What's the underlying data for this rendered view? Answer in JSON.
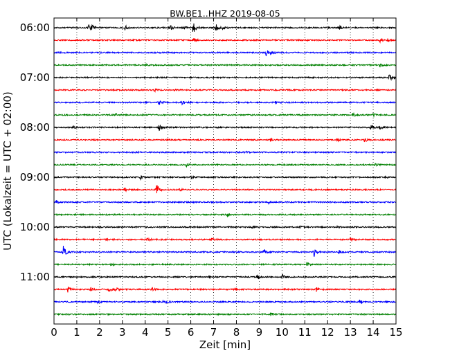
{
  "chart_data": {
    "type": "line",
    "title": "BW.BE1..HHZ 2019-08-05",
    "xlabel": "Zeit  [min]",
    "ylabel": "UTC (Lokalzeit = UTC + 02:00)",
    "xlim": [
      0,
      15
    ],
    "x_ticks": [
      "0",
      "1",
      "2",
      "3",
      "4",
      "5",
      "6",
      "7",
      "8",
      "9",
      "10",
      "11",
      "12",
      "13",
      "14",
      "15"
    ],
    "y_tick_labels": [
      "06:00",
      "07:00",
      "08:00",
      "09:00",
      "10:00",
      "11:00"
    ],
    "trace_interval_min": 15,
    "grid": "vertical dotted at each minute",
    "colors": [
      "#000000",
      "#ff0000",
      "#0000ff",
      "#008000"
    ],
    "traces": [
      {
        "start": "06:00",
        "color": "#000000",
        "events": [
          [
            1.5,
            5
          ],
          [
            1.65,
            4
          ],
          [
            3.1,
            4
          ],
          [
            5.1,
            4
          ],
          [
            5.7,
            3
          ],
          [
            6.1,
            10
          ],
          [
            7.1,
            6
          ],
          [
            7.4,
            3
          ],
          [
            12.5,
            3
          ]
        ]
      },
      {
        "start": "06:15",
        "color": "#ff0000",
        "events": [
          [
            6.1,
            4
          ],
          [
            14.3,
            3
          ],
          [
            14.6,
            3
          ]
        ]
      },
      {
        "start": "06:30",
        "color": "#0000ff",
        "events": [
          [
            0.2,
            2
          ],
          [
            9.3,
            5
          ],
          [
            9.5,
            3
          ]
        ]
      },
      {
        "start": "06:45",
        "color": "#008000",
        "events": [
          [
            4.0,
            2
          ],
          [
            14.3,
            3
          ]
        ]
      },
      {
        "start": "07:00",
        "color": "#000000",
        "events": [
          [
            14.7,
            6
          ],
          [
            14.9,
            2
          ]
        ]
      },
      {
        "start": "07:15",
        "color": "#ff0000",
        "events": [
          [
            4.4,
            2
          ],
          [
            5.3,
            2
          ]
        ]
      },
      {
        "start": "07:30",
        "color": "#0000ff",
        "events": [
          [
            4.6,
            4
          ],
          [
            5.6,
            3
          ],
          [
            9.7,
            2
          ]
        ]
      },
      {
        "start": "07:45",
        "color": "#008000",
        "events": [
          [
            2.7,
            2
          ],
          [
            13.1,
            3
          ],
          [
            14.0,
            2
          ]
        ]
      },
      {
        "start": "08:00",
        "color": "#000000",
        "events": [
          [
            0.8,
            2
          ],
          [
            4.6,
            5
          ],
          [
            13.9,
            4
          ],
          [
            14.3,
            3
          ]
        ]
      },
      {
        "start": "08:15",
        "color": "#ff0000",
        "events": [
          [
            9.5,
            3
          ],
          [
            12.4,
            3
          ],
          [
            13.6,
            4
          ]
        ]
      },
      {
        "start": "08:30",
        "color": "#0000ff",
        "events": [
          [
            3.6,
            2
          ],
          [
            8.4,
            2
          ]
        ]
      },
      {
        "start": "08:45",
        "color": "#008000",
        "events": [
          [
            5.8,
            3
          ],
          [
            14.1,
            2
          ]
        ]
      },
      {
        "start": "09:00",
        "color": "#000000",
        "events": [
          [
            3.8,
            3
          ],
          [
            6.0,
            2
          ],
          [
            14.5,
            2
          ]
        ]
      },
      {
        "start": "09:15",
        "color": "#ff0000",
        "events": [
          [
            3.1,
            3
          ],
          [
            4.5,
            9
          ],
          [
            5.5,
            2
          ]
        ]
      },
      {
        "start": "09:30",
        "color": "#0000ff",
        "events": [
          [
            0.1,
            2
          ],
          [
            9.4,
            2
          ]
        ]
      },
      {
        "start": "09:45",
        "color": "#008000",
        "events": [
          [
            7.6,
            3
          ]
        ]
      },
      {
        "start": "10:00",
        "color": "#000000",
        "events": [
          [
            8.7,
            2
          ],
          [
            10.8,
            3
          ],
          [
            12.4,
            2
          ]
        ]
      },
      {
        "start": "10:15",
        "color": "#ff0000",
        "events": [
          [
            2.3,
            3
          ],
          [
            4.1,
            4
          ],
          [
            6.9,
            3
          ],
          [
            13.0,
            3
          ]
        ]
      },
      {
        "start": "10:30",
        "color": "#0000ff",
        "events": [
          [
            0.4,
            12
          ],
          [
            9.2,
            4
          ],
          [
            11.4,
            8
          ],
          [
            12.5,
            3
          ]
        ]
      },
      {
        "start": "10:45",
        "color": "#008000",
        "events": [
          [
            2.5,
            2
          ],
          [
            11.1,
            3
          ]
        ]
      },
      {
        "start": "11:00",
        "color": "#000000",
        "events": [
          [
            6.8,
            2
          ],
          [
            8.9,
            5
          ],
          [
            10.0,
            5
          ]
        ]
      },
      {
        "start": "11:15",
        "color": "#ff0000",
        "events": [
          [
            0.6,
            4
          ],
          [
            1.6,
            3
          ],
          [
            2.4,
            4
          ],
          [
            2.7,
            3
          ],
          [
            4.3,
            3
          ],
          [
            7.9,
            3
          ],
          [
            11.5,
            3
          ]
        ]
      },
      {
        "start": "11:30",
        "color": "#0000ff",
        "events": [
          [
            1.9,
            2
          ],
          [
            4.8,
            3
          ],
          [
            13.4,
            3
          ]
        ]
      },
      {
        "start": "11:45",
        "color": "#008000",
        "events": [
          [
            9.5,
            3
          ]
        ]
      }
    ]
  }
}
